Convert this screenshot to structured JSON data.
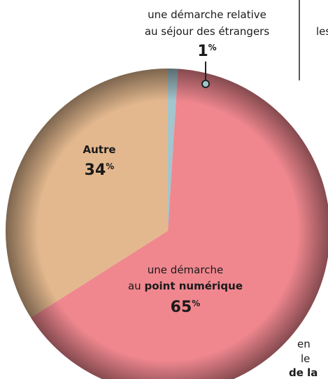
{
  "chart_data": {
    "type": "pie",
    "categories": [
      [
        "une démarche relative",
        "au séjour des étrangers"
      ],
      [
        "une démarche",
        "au ",
        "point numérique"
      ],
      [
        "Autre"
      ]
    ],
    "values": [
      1,
      65,
      34
    ],
    "unit": "%",
    "colors": [
      "#a3c5cd",
      "#f0878f",
      "#e3b88e"
    ],
    "fragments": [
      "les",
      "en",
      "le",
      "de la"
    ]
  }
}
